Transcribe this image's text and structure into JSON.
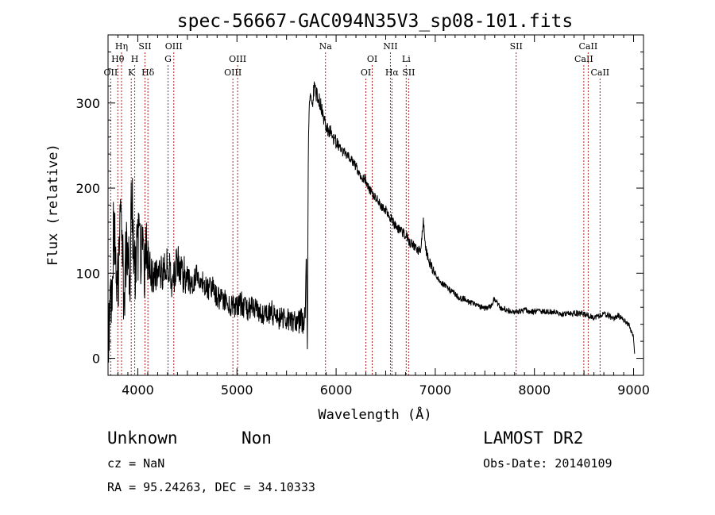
{
  "chart_data": {
    "type": "line",
    "title": "spec-56667-GAC094N35V3_sp08-101.fits",
    "xlabel": "Wavelength (Å)",
    "ylabel": "Flux (relative)",
    "xlim": [
      3700,
      9100
    ],
    "ylim": [
      -20,
      380
    ],
    "xticks": [
      4000,
      5000,
      6000,
      7000,
      8000,
      9000
    ],
    "yticks": [
      0,
      100,
      200,
      300
    ],
    "xtick_labels": [
      "4000",
      "5000",
      "6000",
      "7000",
      "8000",
      "9000"
    ],
    "ytick_labels": [
      "0",
      "100",
      "200",
      "300"
    ],
    "grid": false,
    "colors": {
      "spectrum": "#000000",
      "line_marker": "#b22222",
      "axes": "#000000"
    },
    "series": [
      {
        "x": [
          3700,
          3720,
          3740,
          3760,
          3780,
          3800,
          3820,
          3840,
          3860,
          3880,
          3900,
          3920,
          3940,
          3960,
          3980,
          4000,
          4050,
          4100,
          4150,
          4200,
          4250,
          4300,
          4350,
          4400,
          4450,
          4500,
          4550,
          4600,
          4650,
          4700,
          4750,
          4800,
          4850,
          4900,
          4950,
          5000,
          5050,
          5100,
          5150,
          5200,
          5250,
          5300,
          5350,
          5400,
          5450,
          5500,
          5550,
          5600,
          5650,
          5680,
          5690,
          5700,
          5710,
          5720,
          5730,
          5740,
          5760,
          5780,
          5800,
          5820,
          5840,
          5860,
          5880,
          5900,
          5950,
          6000,
          6050,
          6100,
          6150,
          6200,
          6250,
          6300,
          6350,
          6400,
          6450,
          6500,
          6550,
          6600,
          6650,
          6700,
          6750,
          6800,
          6850,
          6880,
          6900,
          6920,
          6950,
          7000,
          7050,
          7100,
          7150,
          7200,
          7250,
          7300,
          7350,
          7400,
          7450,
          7500,
          7550,
          7600,
          7650,
          7700,
          7750,
          7800,
          7850,
          7900,
          7950,
          8000,
          8100,
          8200,
          8300,
          8400,
          8500,
          8550,
          8600,
          8650,
          8700,
          8750,
          8800,
          8850,
          8900,
          8950,
          9000,
          9010
        ],
        "y": [
          10,
          60,
          90,
          160,
          110,
          80,
          150,
          170,
          60,
          120,
          140,
          100,
          210,
          90,
          110,
          130,
          110,
          120,
          95,
          105,
          100,
          110,
          90,
          115,
          100,
          95,
          85,
          100,
          90,
          80,
          85,
          70,
          70,
          65,
          60,
          60,
          65,
          55,
          60,
          55,
          50,
          50,
          55,
          45,
          50,
          45,
          45,
          40,
          45,
          40,
          60,
          130,
          10,
          250,
          300,
          310,
          300,
          320,
          310,
          305,
          300,
          290,
          280,
          270,
          265,
          255,
          245,
          240,
          235,
          225,
          215,
          210,
          195,
          190,
          180,
          175,
          165,
          155,
          150,
          145,
          135,
          130,
          125,
          160,
          130,
          120,
          110,
          100,
          90,
          85,
          80,
          75,
          70,
          70,
          65,
          65,
          60,
          58,
          60,
          70,
          60,
          58,
          55,
          55,
          55,
          58,
          55,
          55,
          55,
          54,
          52,
          53,
          52,
          50,
          48,
          50,
          52,
          50,
          47,
          50,
          45,
          40,
          25,
          5
        ]
      }
    ],
    "lines": [
      {
        "name": "OII",
        "x": 3727,
        "row": 3
      },
      {
        "name": "Hθ",
        "x": 3798,
        "row": 2
      },
      {
        "name": "Hη",
        "x": 3836,
        "row": 1
      },
      {
        "name": "K",
        "x": 3934,
        "row": 3
      },
      {
        "name": "H",
        "x": 3969,
        "row": 2
      },
      {
        "name": "SII",
        "x": 4072,
        "row": 1
      },
      {
        "name": "Hδ",
        "x": 4102,
        "row": 3
      },
      {
        "name": "G",
        "x": 4305,
        "row": 2
      },
      {
        "name": "OIII",
        "x": 4363,
        "row": 1
      },
      {
        "name": "OIII",
        "x": 4959,
        "row": 3
      },
      {
        "name": "OIII",
        "x": 5007,
        "row": 2
      },
      {
        "name": "Na",
        "x": 5893,
        "row": 1
      },
      {
        "name": "OI",
        "x": 6300,
        "row": 3
      },
      {
        "name": "OI",
        "x": 6364,
        "row": 2
      },
      {
        "name": "NII",
        "x": 6548,
        "row": 1
      },
      {
        "name": "Hα",
        "x": 6563,
        "row": 3
      },
      {
        "name": "Li",
        "x": 6707,
        "row": 2
      },
      {
        "name": "SII",
        "x": 6731,
        "row": 3
      },
      {
        "name": "SII",
        "x": 7816,
        "row": 1
      },
      {
        "name": "CaII",
        "x": 8498,
        "row": 2
      },
      {
        "name": "CaII",
        "x": 8542,
        "row": 1
      },
      {
        "name": "CaII",
        "x": 8662,
        "row": 3
      }
    ]
  },
  "info": {
    "class": "Unknown",
    "subclass": "Non",
    "cz": "cz = NaN",
    "coords": "RA =  95.24263, DEC =  34.10333",
    "survey": "LAMOST DR2",
    "obs_date": "Obs-Date: 20140109"
  }
}
